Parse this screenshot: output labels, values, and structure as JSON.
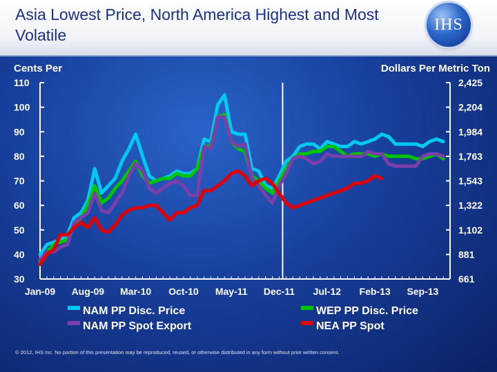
{
  "title": "Asia Lowest Price, North America Highest and Most Volatile",
  "logo_text": "IHS",
  "footer": "© 2012, IHS Inc. No portion of this presentation may be reproduced, reused, or otherwise distributed in any form without prior written consent.",
  "chart_data": {
    "type": "line",
    "title": "Asia Lowest Price, North America Highest and Most Volatile",
    "ylabel": "Cents Per",
    "y2label": "Dollars Per Metric Ton",
    "ylim": [
      30,
      110
    ],
    "y2lim": [
      661,
      2425
    ],
    "yticks": [
      "110",
      "100",
      "90",
      "80",
      "70",
      "60",
      "50",
      "40",
      "30"
    ],
    "y2ticks": [
      "2,425",
      "2,204",
      "1,984",
      "1,763",
      "1,543",
      "1,322",
      "1,102",
      "881",
      "661"
    ],
    "xlim": [
      0,
      60
    ],
    "x_tick_positions": [
      0,
      7,
      14,
      21,
      28,
      35,
      42,
      49,
      56
    ],
    "x_tick_labels": [
      "Jan-09",
      "Aug-09",
      "Mar-10",
      "Oct-10",
      "May-11",
      "Dec-11",
      "Jul-12",
      "Feb-13",
      "Sep-13"
    ],
    "forecast_divider_x": 35.5,
    "series": [
      {
        "name": "NAM PP Disc. Price",
        "color": "#00c8f0",
        "x": [
          0,
          1,
          2,
          3,
          4,
          5,
          6,
          7,
          8,
          9,
          10,
          11,
          12,
          13,
          14,
          15,
          16,
          17,
          18,
          19,
          20,
          21,
          22,
          23,
          24,
          25,
          26,
          27,
          28,
          29,
          30,
          31,
          32,
          33,
          34,
          35,
          36,
          37,
          38,
          39,
          40,
          41,
          42,
          43,
          44,
          45,
          46,
          47,
          48,
          49,
          50,
          51,
          52,
          53,
          54,
          55,
          56,
          57,
          58,
          59
        ],
        "values": [
          40,
          44,
          45,
          46,
          48,
          55,
          57,
          62,
          75,
          65,
          68,
          71,
          78,
          83,
          89,
          80,
          72,
          70,
          71,
          72,
          74,
          73,
          73,
          75,
          87,
          86,
          101,
          105,
          90,
          89,
          89,
          75,
          74,
          68,
          67,
          72,
          78,
          80,
          84,
          85,
          85,
          83,
          86,
          85,
          84,
          84,
          86,
          85,
          86,
          87,
          89,
          88,
          85,
          85,
          85,
          85,
          84,
          86,
          87,
          86
        ]
      },
      {
        "name": "WEP PP Disc. Price",
        "color": "#00c400",
        "x": [
          0,
          1,
          2,
          3,
          4,
          5,
          6,
          7,
          8,
          9,
          10,
          11,
          12,
          13,
          14,
          15,
          16,
          17,
          18,
          19,
          20,
          21,
          22,
          23,
          24,
          25,
          26,
          27,
          28,
          29,
          30,
          31,
          32,
          33,
          34,
          35,
          36,
          37,
          38,
          39,
          40,
          41,
          42,
          43,
          44,
          45,
          46,
          47,
          48,
          49,
          50,
          51,
          52,
          53,
          54,
          55,
          56,
          57,
          58,
          59
        ],
        "values": [
          37,
          41,
          44,
          45,
          46,
          52,
          55,
          60,
          68,
          61,
          63,
          67,
          70,
          74,
          78,
          72,
          69,
          70,
          71,
          71,
          73,
          72,
          72,
          75,
          84,
          84,
          96,
          97,
          86,
          83,
          82,
          72,
          70,
          67,
          65,
          70,
          75,
          79,
          81,
          81,
          82,
          82,
          84,
          84,
          82,
          80,
          81,
          81,
          81,
          80,
          81,
          80,
          80,
          80,
          80,
          79,
          79,
          80,
          81,
          79
        ]
      },
      {
        "name": "NAM PP Spot Export",
        "color": "#7a3fa8",
        "x": [
          0,
          1,
          2,
          3,
          4,
          5,
          6,
          7,
          8,
          9,
          10,
          11,
          12,
          13,
          14,
          15,
          16,
          17,
          18,
          19,
          20,
          21,
          22,
          23,
          24,
          25,
          26,
          27,
          28,
          29,
          30,
          31,
          32,
          33,
          34,
          35,
          36,
          37,
          38,
          39,
          40,
          41,
          42,
          43,
          44,
          45,
          46,
          47,
          48,
          49,
          50,
          51,
          52,
          53,
          54,
          55,
          56,
          57,
          58,
          59
        ],
        "values": [
          38,
          41,
          41,
          43,
          44,
          53,
          55,
          57,
          65,
          58,
          57,
          61,
          65,
          72,
          77,
          74,
          67,
          65,
          67,
          69,
          70,
          68,
          64,
          64,
          84,
          83,
          96,
          96,
          86,
          84,
          85,
          71,
          68,
          64,
          61,
          68,
          73,
          79,
          80,
          79,
          77,
          78,
          81,
          80,
          80,
          80,
          80,
          80,
          82,
          81,
          81,
          77,
          76,
          76,
          76,
          76,
          80,
          81,
          81,
          80
        ]
      },
      {
        "name": "NEA PP Spot",
        "color": "#e00000",
        "x": [
          0,
          1,
          2,
          3,
          4,
          5,
          6,
          7,
          8,
          9,
          10,
          11,
          12,
          13,
          14,
          15,
          16,
          17,
          18,
          19,
          20,
          21,
          22,
          23,
          24,
          25,
          26,
          27,
          28,
          29,
          30,
          31,
          32,
          33,
          34,
          35,
          36,
          37,
          38,
          39,
          40,
          41,
          42,
          43,
          44,
          45,
          46,
          47,
          48,
          49,
          50
        ],
        "values": [
          36,
          40,
          42,
          48,
          48,
          51,
          53,
          51,
          55,
          50,
          49,
          52,
          56,
          58,
          59,
          59,
          60,
          60,
          57,
          54,
          57,
          57,
          59,
          60,
          66,
          66,
          68,
          70,
          73,
          74,
          72,
          68,
          70,
          71,
          69,
          65,
          61,
          59,
          60,
          61,
          62,
          63,
          64,
          65,
          66,
          67,
          69,
          69,
          70,
          72,
          71
        ]
      }
    ]
  }
}
